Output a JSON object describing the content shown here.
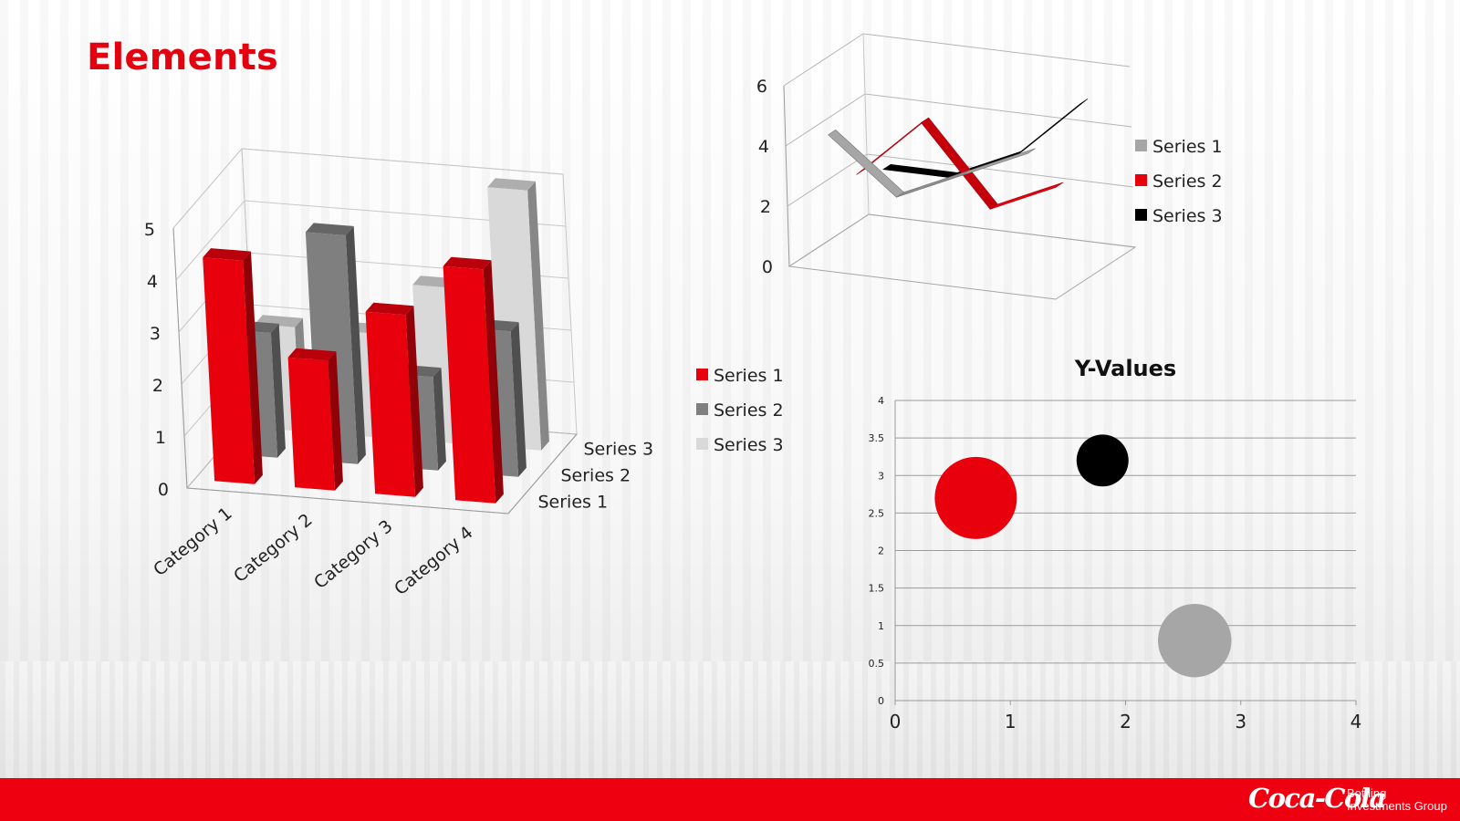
{
  "slide": {
    "title": "Elements"
  },
  "footer": {
    "logo_script": "Coca-Cola",
    "logo_line1": "Bottling",
    "logo_line2": "Investments Group"
  },
  "chart_data": [
    {
      "type": "bar",
      "variant": "3d-clustered-column",
      "categories": [
        "Category 1",
        "Category 2",
        "Category 3",
        "Category 4"
      ],
      "series": [
        {
          "name": "Series 1",
          "values": [
            4.3,
            2.5,
            3.5,
            4.5
          ]
        },
        {
          "name": "Series 2",
          "values": [
            2.4,
            4.4,
            1.8,
            2.8
          ]
        },
        {
          "name": "Series 3",
          "values": [
            2.0,
            2.0,
            3.0,
            5.0
          ]
        }
      ],
      "ylim": [
        0,
        5
      ],
      "yticks": [
        "0",
        "1",
        "2",
        "3",
        "4",
        "5"
      ],
      "legend": "right",
      "colors": [
        "#e8000d",
        "#7f7f7f",
        "#d9d9d9"
      ]
    },
    {
      "type": "line",
      "variant": "3d-line",
      "categories": [
        "Category 1",
        "Category 2",
        "Category 3",
        "Category 4"
      ],
      "series": [
        {
          "name": "Series 1",
          "values": [
            4.3,
            2.5,
            3.5,
            4.5
          ]
        },
        {
          "name": "Series 2",
          "values": [
            2.4,
            4.4,
            1.8,
            2.8
          ]
        },
        {
          "name": "Series 3",
          "values": [
            2.0,
            2.0,
            3.0,
            5.0
          ]
        }
      ],
      "ylim": [
        0,
        6
      ],
      "yticks": [
        "0",
        "2",
        "4",
        "6"
      ],
      "legend": "right",
      "colors": [
        "#a6a6a6",
        "#e8000d",
        "#000000"
      ]
    },
    {
      "type": "scatter",
      "variant": "bubble",
      "title": "Y-Values",
      "points": [
        {
          "x": 0.7,
          "y": 2.7,
          "size": 10,
          "color": "#e8000d"
        },
        {
          "x": 1.8,
          "y": 3.2,
          "size": 4,
          "color": "#000000"
        },
        {
          "x": 2.6,
          "y": 0.8,
          "size": 8,
          "color": "#a6a6a6"
        }
      ],
      "xlim": [
        0,
        4
      ],
      "ylim": [
        0,
        4
      ],
      "xticks": [
        "0",
        "1",
        "2",
        "3",
        "4"
      ],
      "yticks": [
        "0",
        "0.5",
        "1",
        "1.5",
        "2",
        "2.5",
        "3",
        "3.5",
        "4"
      ],
      "grid": true,
      "legend": "none"
    }
  ]
}
